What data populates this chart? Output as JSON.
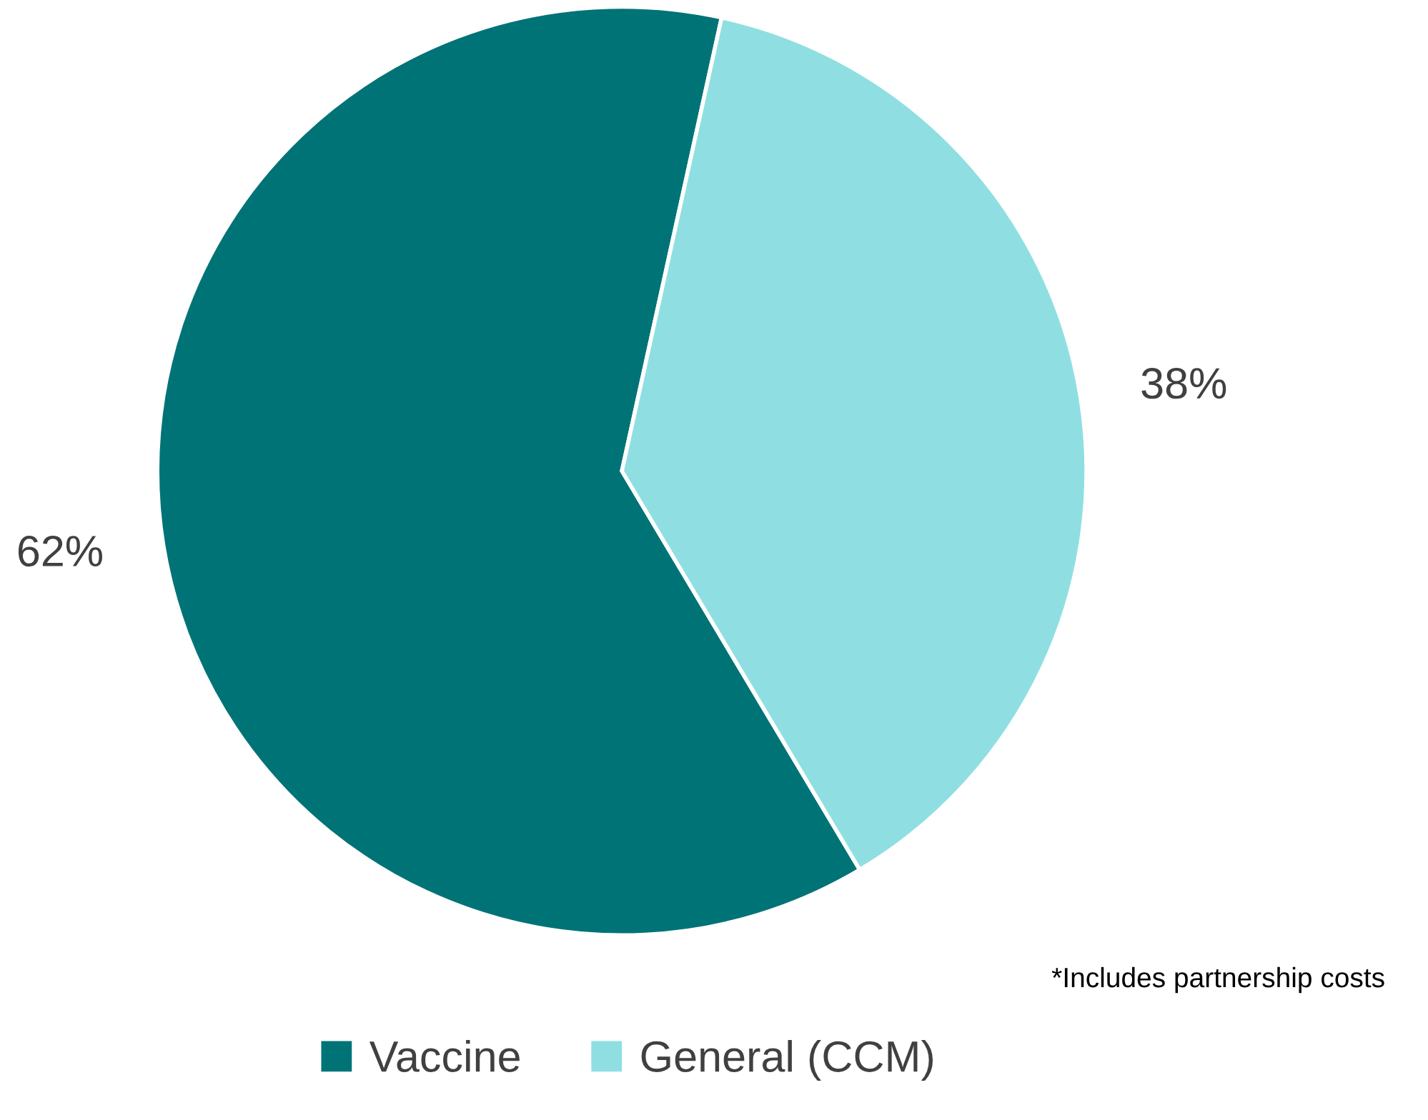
{
  "chart_data": {
    "type": "pie",
    "categories": [
      "Vaccine",
      "General (CCM)"
    ],
    "values": [
      62,
      38
    ],
    "colors": [
      "#007377",
      "#8fdfe2"
    ],
    "value_labels": [
      "62%",
      "38%"
    ],
    "annotations": [
      "*Includes partnership costs"
    ],
    "legend": "bottom"
  }
}
